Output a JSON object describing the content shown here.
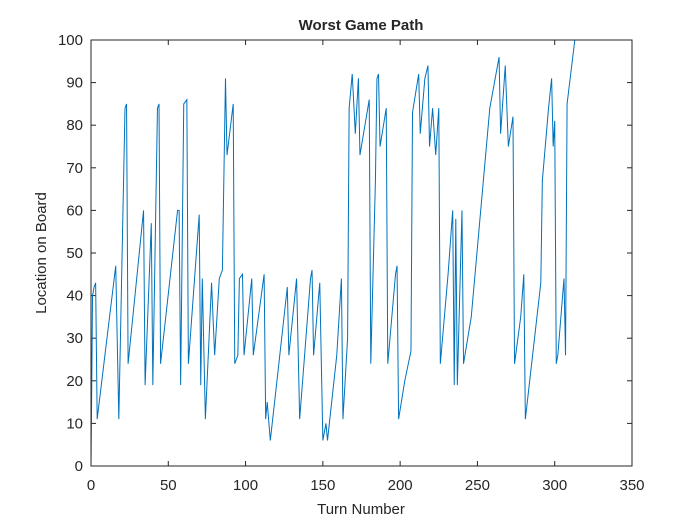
{
  "chart_data": {
    "type": "line",
    "title": "Worst Game Path",
    "x_label": "Turn Number",
    "y_label": "Location on Board",
    "x": [
      0,
      1,
      2,
      3,
      4,
      16,
      18,
      22,
      23,
      24,
      34,
      35,
      39,
      40,
      43,
      44,
      45,
      56,
      57,
      58,
      60,
      62,
      63,
      70,
      71,
      72,
      74,
      78,
      80,
      83,
      85,
      87,
      88,
      92,
      93,
      95,
      96,
      98,
      99,
      104,
      105,
      112,
      113,
      114,
      116,
      120,
      127,
      128,
      133,
      135,
      142,
      143,
      144,
      148,
      150,
      152,
      153,
      159,
      162,
      163,
      166,
      167,
      169,
      171,
      173,
      174,
      180,
      181,
      184,
      185,
      186,
      187,
      191,
      192,
      197,
      198,
      199,
      203,
      207,
      208,
      212,
      213,
      216,
      218,
      219,
      221,
      223,
      225,
      226,
      231,
      234,
      235,
      236,
      237,
      240,
      241,
      246,
      258,
      264,
      265,
      268,
      270,
      273,
      274,
      278,
      280,
      281,
      291,
      292,
      296,
      298,
      299,
      300,
      301,
      302,
      306,
      307,
      308,
      313
    ],
    "series": [
      {
        "name": "path",
        "color": "#0072bd",
        "values": [
          0,
          40,
          42,
          43,
          11,
          47,
          11,
          84,
          85,
          24,
          60,
          19,
          57,
          19,
          84,
          85,
          24,
          60,
          60,
          19,
          85,
          86,
          24,
          59,
          19,
          44,
          11,
          43,
          26,
          44,
          46,
          91,
          73,
          85,
          24,
          26,
          44,
          45,
          26,
          44,
          26,
          45,
          11,
          15,
          6,
          19,
          42,
          26,
          44,
          11,
          44,
          46,
          26,
          43,
          6,
          10,
          6,
          26,
          44,
          11,
          30,
          84,
          92,
          78,
          91,
          73,
          86,
          24,
          67,
          91,
          92,
          75,
          84,
          24,
          45,
          47,
          11,
          20,
          27,
          83,
          92,
          78,
          91,
          94,
          75,
          84,
          73,
          84,
          24,
          45,
          60,
          19,
          58,
          19,
          60,
          24,
          35,
          84,
          96,
          78,
          94,
          75,
          82,
          24,
          35,
          45,
          11,
          43,
          67,
          84,
          91,
          75,
          81,
          24,
          26,
          44,
          26,
          85,
          100
        ]
      }
    ],
    "xlim": [
      0,
      350
    ],
    "ylim": [
      0,
      100
    ],
    "xticks": [
      0,
      50,
      100,
      150,
      200,
      250,
      300,
      350
    ],
    "yticks": [
      0,
      10,
      20,
      30,
      40,
      50,
      60,
      70,
      80,
      90,
      100
    ]
  }
}
